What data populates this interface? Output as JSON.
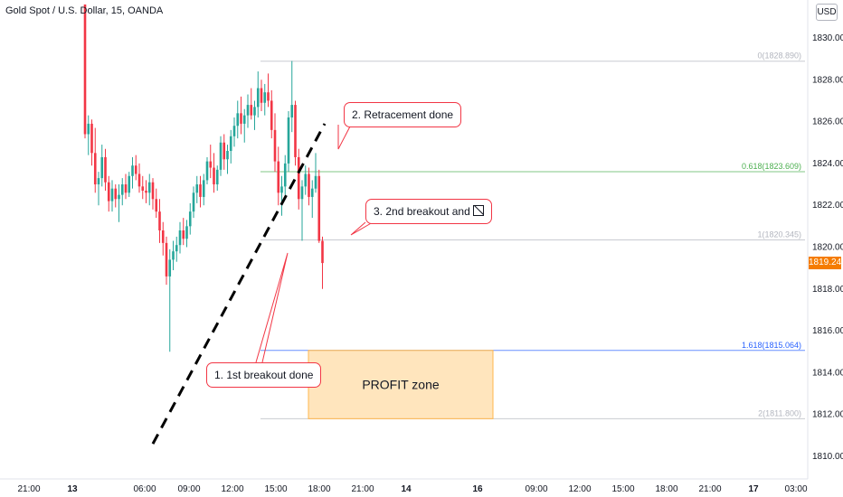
{
  "header": {
    "symbol_title": "Gold Spot / U.S. Dollar, 15, OANDA",
    "currency_button": "USD"
  },
  "colors": {
    "up": "#26a69a",
    "down": "#f23645",
    "trendline": "#000000",
    "fib_0": "#b2b5be",
    "fib_0618": "#4caf50",
    "fib_1": "#b2b5be",
    "fib_1618": "#2962ff",
    "fib_2": "#b2b5be",
    "profit_fill": "#ffe0b2",
    "profit_border": "#ffb74d",
    "price_tag": "#f57c00"
  },
  "last_price": "1819.240",
  "annotations": {
    "callout_1": "1. 1st breakout done",
    "callout_2": "2. Retracement done",
    "callout_3": "3. 2nd breakout and",
    "profit_zone": "PROFIT zone"
  },
  "chart_data": {
    "type": "candlestick",
    "symbol": "XAUUSD",
    "timeframe": "15",
    "ylim": [
      1809.0,
      1831.6
    ],
    "y_ticks": [
      "1830.000",
      "1828.000",
      "1826.000",
      "1824.000",
      "1822.000",
      "1820.000",
      "1818.000",
      "1816.000",
      "1814.000",
      "1812.000",
      "1810.000"
    ],
    "x_ticks": [
      "21:00",
      "13",
      "06:00",
      "09:00",
      "12:00",
      "15:00",
      "18:00",
      "21:00",
      "14",
      "16",
      "09:00",
      "12:00",
      "15:00",
      "18:00",
      "21:00",
      "17",
      "03:00"
    ],
    "fib_levels": [
      {
        "ratio": 0,
        "price": 1828.89,
        "label": "0(1828.890)"
      },
      {
        "ratio": 0.618,
        "price": 1823.609,
        "label": "0.618(1823.609)"
      },
      {
        "ratio": 1,
        "price": 1820.345,
        "label": "1(1820.345)"
      },
      {
        "ratio": 1.618,
        "price": 1815.064,
        "label": "1.618(1815.064)"
      },
      {
        "ratio": 2,
        "price": 1811.8,
        "label": "2(1811.800)"
      }
    ],
    "profit_zone": {
      "price_top": 1815.064,
      "price_bottom": 1811.8
    },
    "trendline": {
      "from_price": 1810.6,
      "to_price": 1825.9
    },
    "candles": [
      [
        1831.6,
        1831.6,
        1825.2,
        1825.4
      ],
      [
        1825.4,
        1826.3,
        1824.4,
        1825.9
      ],
      [
        1825.9,
        1826.1,
        1823.9,
        1824.5
      ],
      [
        1824.5,
        1825.7,
        1822.6,
        1823.0
      ],
      [
        1823.0,
        1823.6,
        1822.0,
        1823.3
      ],
      [
        1823.3,
        1824.9,
        1822.9,
        1824.3
      ],
      [
        1824.3,
        1824.7,
        1822.7,
        1823.1
      ],
      [
        1823.1,
        1823.4,
        1821.7,
        1822.2
      ],
      [
        1822.2,
        1823.2,
        1821.7,
        1822.8
      ],
      [
        1822.8,
        1823.0,
        1821.9,
        1822.3
      ],
      [
        1822.3,
        1823.0,
        1821.2,
        1822.5
      ],
      [
        1822.5,
        1823.3,
        1822.0,
        1823.0
      ],
      [
        1823.0,
        1823.5,
        1822.3,
        1822.6
      ],
      [
        1822.6,
        1823.6,
        1822.4,
        1823.4
      ],
      [
        1823.4,
        1824.3,
        1822.8,
        1823.9
      ],
      [
        1823.9,
        1824.4,
        1823.2,
        1823.5
      ],
      [
        1823.5,
        1824.0,
        1822.6,
        1822.9
      ],
      [
        1822.9,
        1823.4,
        1822.3,
        1822.7
      ],
      [
        1822.7,
        1823.2,
        1822.1,
        1822.6
      ],
      [
        1822.6,
        1823.5,
        1822.0,
        1823.1
      ],
      [
        1823.1,
        1823.3,
        1821.8,
        1822.3
      ],
      [
        1822.3,
        1822.8,
        1821.4,
        1821.7
      ],
      [
        1821.7,
        1822.3,
        1820.2,
        1820.8
      ],
      [
        1820.8,
        1821.2,
        1819.6,
        1820.2
      ],
      [
        1820.2,
        1820.5,
        1818.2,
        1818.6
      ],
      [
        1818.6,
        1819.9,
        1815.0,
        1819.4
      ],
      [
        1819.4,
        1820.3,
        1818.9,
        1819.8
      ],
      [
        1819.8,
        1820.5,
        1819.3,
        1820.1
      ],
      [
        1820.1,
        1821.2,
        1819.7,
        1820.8
      ],
      [
        1820.8,
        1821.4,
        1820.1,
        1820.4
      ],
      [
        1820.4,
        1821.3,
        1820.0,
        1821.0
      ],
      [
        1821.0,
        1822.1,
        1820.6,
        1821.7
      ],
      [
        1821.7,
        1822.9,
        1821.4,
        1822.6
      ],
      [
        1822.6,
        1823.4,
        1822.1,
        1823.0
      ],
      [
        1823.0,
        1823.4,
        1821.9,
        1822.4
      ],
      [
        1822.4,
        1823.5,
        1822.0,
        1823.2
      ],
      [
        1823.2,
        1824.3,
        1823.0,
        1824.1
      ],
      [
        1824.1,
        1824.9,
        1823.3,
        1823.8
      ],
      [
        1823.8,
        1824.5,
        1822.6,
        1823.0
      ],
      [
        1823.0,
        1823.9,
        1822.7,
        1823.7
      ],
      [
        1823.7,
        1825.3,
        1823.4,
        1825.0
      ],
      [
        1825.0,
        1825.4,
        1823.7,
        1824.2
      ],
      [
        1824.2,
        1824.9,
        1823.5,
        1824.6
      ],
      [
        1824.6,
        1825.6,
        1824.0,
        1825.3
      ],
      [
        1825.3,
        1826.2,
        1824.8,
        1825.8
      ],
      [
        1825.8,
        1827.0,
        1825.2,
        1826.4
      ],
      [
        1826.4,
        1827.2,
        1825.4,
        1825.9
      ],
      [
        1825.9,
        1826.6,
        1825.0,
        1826.3
      ],
      [
        1826.3,
        1827.3,
        1825.7,
        1826.8
      ],
      [
        1826.8,
        1827.6,
        1826.1,
        1826.3
      ],
      [
        1826.3,
        1827.0,
        1825.6,
        1826.7
      ],
      [
        1826.7,
        1828.4,
        1826.2,
        1827.6
      ],
      [
        1827.6,
        1828.0,
        1826.5,
        1826.9
      ],
      [
        1826.9,
        1827.8,
        1826.3,
        1827.4
      ],
      [
        1827.4,
        1828.3,
        1826.7,
        1827.0
      ],
      [
        1827.0,
        1827.5,
        1825.2,
        1825.6
      ],
      [
        1825.6,
        1826.4,
        1823.6,
        1824.1
      ],
      [
        1824.1,
        1824.8,
        1822.0,
        1822.6
      ],
      [
        1822.6,
        1823.4,
        1821.5,
        1822.9
      ],
      [
        1822.9,
        1824.4,
        1822.5,
        1824.0
      ],
      [
        1824.0,
        1826.5,
        1823.6,
        1826.2
      ],
      [
        1826.2,
        1828.9,
        1825.5,
        1826.8
      ],
      [
        1826.8,
        1827.0,
        1823.9,
        1824.3
      ],
      [
        1824.3,
        1824.7,
        1821.8,
        1822.3
      ],
      [
        1822.3,
        1823.2,
        1820.3,
        1822.9
      ],
      [
        1822.9,
        1823.9,
        1822.5,
        1823.5
      ],
      [
        1823.5,
        1823.8,
        1822.0,
        1822.4
      ],
      [
        1822.4,
        1823.2,
        1821.4,
        1822.8
      ],
      [
        1822.8,
        1824.5,
        1822.6,
        1823.4
      ],
      [
        1823.4,
        1823.7,
        1820.2,
        1820.3
      ],
      [
        1820.3,
        1820.5,
        1818.0,
        1819.24
      ]
    ]
  }
}
